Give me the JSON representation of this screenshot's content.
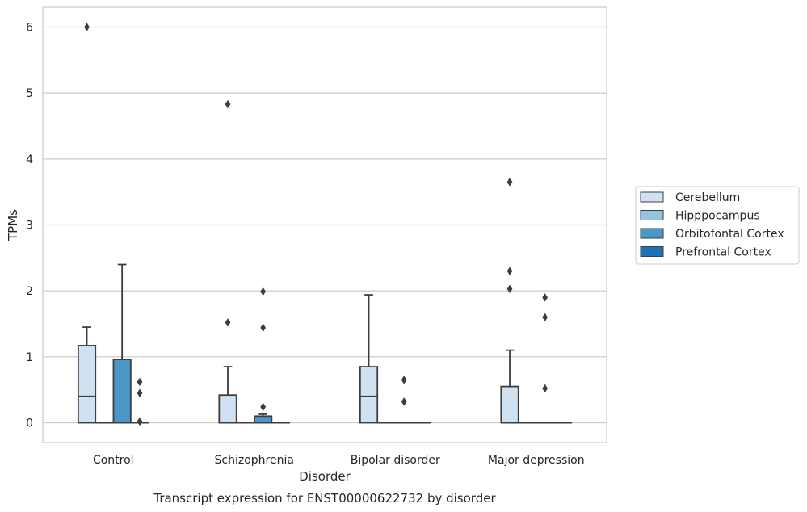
{
  "chart_data": {
    "type": "box",
    "title": "",
    "caption": "Transcript expression for ENST00000622732 by disorder",
    "xlabel": "Disorder",
    "ylabel": "TPMs",
    "ylim": [
      -0.3,
      6.3
    ],
    "yticks": [
      0,
      1,
      2,
      3,
      4,
      5,
      6
    ],
    "grid": "horizontal",
    "legend_position": "right",
    "categories": [
      "Control",
      "Schizophrenia",
      "Bipolar disorder",
      "Major depression"
    ],
    "series": [
      {
        "name": "Cerebellum",
        "color": "#d0e1f2",
        "boxes": [
          {
            "q1": 0,
            "median": 0.4,
            "q3": 1.17,
            "whisker_low": 0,
            "whisker_high": 1.45,
            "outliers": [
              6.0
            ]
          },
          {
            "q1": 0,
            "median": 0,
            "q3": 0.42,
            "whisker_low": 0,
            "whisker_high": 0.85,
            "outliers": [
              4.83,
              1.52
            ]
          },
          {
            "q1": 0,
            "median": 0.4,
            "q3": 0.85,
            "whisker_low": 0,
            "whisker_high": 1.94,
            "outliers": []
          },
          {
            "q1": 0,
            "median": 0,
            "q3": 0.55,
            "whisker_low": 0,
            "whisker_high": 1.1,
            "outliers": [
              3.65,
              2.3,
              2.03
            ]
          }
        ]
      },
      {
        "name": "Hipppocampus",
        "color": "#94c4df",
        "boxes": [
          {
            "q1": 0,
            "median": 0,
            "q3": 0,
            "whisker_low": 0,
            "whisker_high": 0,
            "outliers": []
          },
          {
            "q1": 0,
            "median": 0,
            "q3": 0,
            "whisker_low": 0,
            "whisker_high": 0,
            "outliers": []
          },
          {
            "q1": 0,
            "median": 0,
            "q3": 0,
            "whisker_low": 0,
            "whisker_high": 0,
            "outliers": []
          },
          {
            "q1": 0,
            "median": 0,
            "q3": 0,
            "whisker_low": 0,
            "whisker_high": 0,
            "outliers": []
          }
        ]
      },
      {
        "name": "Orbitofontal Cortex",
        "color": "#4a98c9",
        "boxes": [
          {
            "q1": 0,
            "median": 0,
            "q3": 0.96,
            "whisker_low": 0,
            "whisker_high": 2.4,
            "outliers": []
          },
          {
            "q1": 0,
            "median": 0,
            "q3": 0.1,
            "whisker_low": 0,
            "whisker_high": 0.13,
            "outliers": [
              1.99,
              1.44,
              0.24
            ]
          },
          {
            "q1": 0,
            "median": 0,
            "q3": 0,
            "whisker_low": 0,
            "whisker_high": 0,
            "outliers": [
              0.65,
              0.32
            ]
          },
          {
            "q1": 0,
            "median": 0,
            "q3": 0,
            "whisker_low": 0,
            "whisker_high": 0,
            "outliers": [
              1.9,
              1.6,
              0.52
            ]
          }
        ]
      },
      {
        "name": "Prefrontal Cortex",
        "color": "#2171b5",
        "boxes": [
          {
            "q1": 0,
            "median": 0,
            "q3": 0,
            "whisker_low": 0,
            "whisker_high": 0,
            "outliers": [
              0.62,
              0.45,
              0.02
            ]
          },
          {
            "q1": 0,
            "median": 0,
            "q3": 0,
            "whisker_low": 0,
            "whisker_high": 0,
            "outliers": []
          },
          {
            "q1": 0,
            "median": 0,
            "q3": 0,
            "whisker_low": 0,
            "whisker_high": 0,
            "outliers": []
          },
          {
            "q1": 0,
            "median": 0,
            "q3": 0,
            "whisker_low": 0,
            "whisker_high": 0,
            "outliers": []
          }
        ]
      }
    ]
  }
}
